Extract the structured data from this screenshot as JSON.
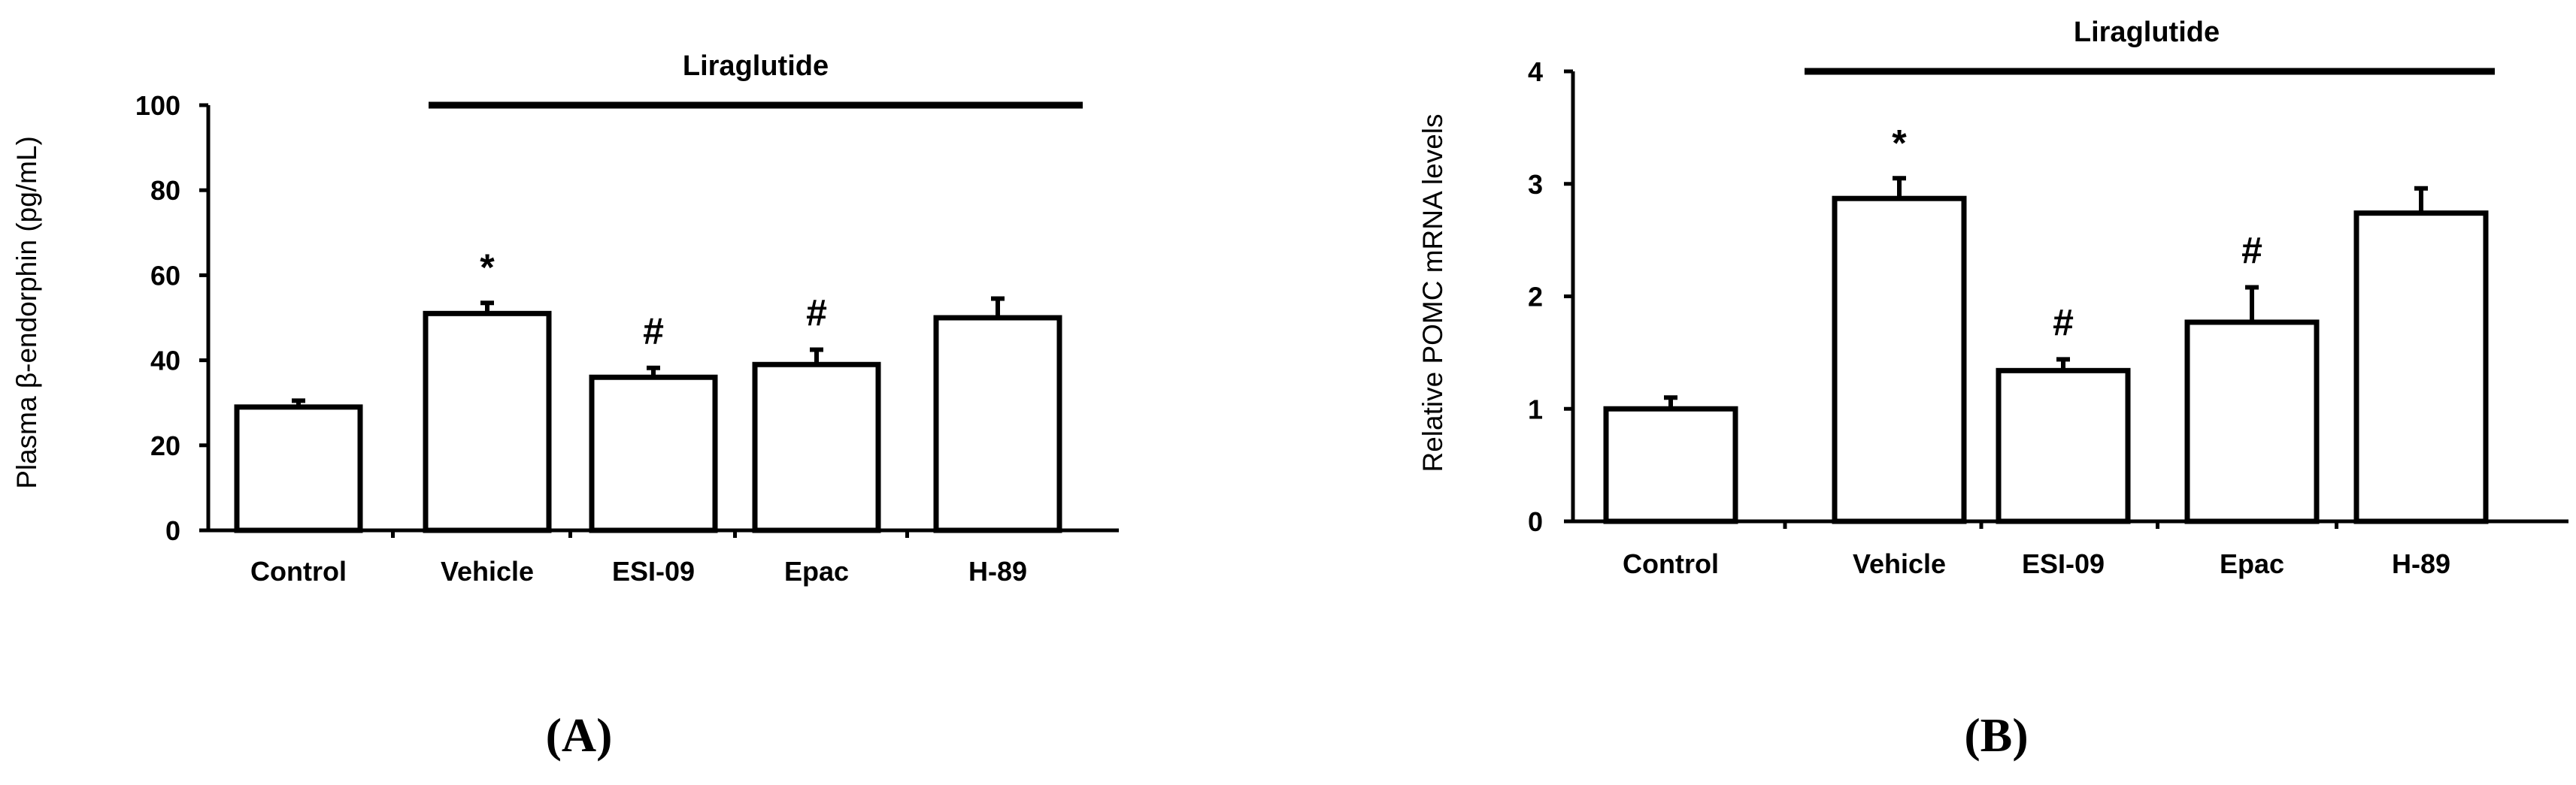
{
  "chart_data": [
    {
      "type": "bar",
      "panel_label": "(A)",
      "ylabel": "Plasma β-endorphin (pg/mL)",
      "ylim": [
        0,
        100
      ],
      "yticks": [
        "0",
        "20",
        "40",
        "60",
        "80",
        "100"
      ],
      "categories": [
        "Control",
        "Vehicle",
        "ESI-09",
        "Epac",
        "H-89"
      ],
      "values": [
        29,
        51,
        36,
        39,
        50
      ],
      "errors": [
        1.5,
        2.5,
        2.2,
        3.5,
        4.5
      ],
      "annotations": [
        "",
        "*",
        "#",
        "#",
        ""
      ],
      "group_label": "Liraglutide",
      "group_span": [
        "Vehicle",
        "H-89"
      ]
    },
    {
      "type": "bar",
      "panel_label": "(B)",
      "ylabel": "Relative POMC mRNA levels",
      "ylim": [
        0,
        4
      ],
      "yticks": [
        "0",
        "1",
        "2",
        "3",
        "4"
      ],
      "categories": [
        "Control",
        "Vehicle",
        "ESI-09",
        "Epac",
        "H-89"
      ],
      "values": [
        1.0,
        2.87,
        1.34,
        1.77,
        2.74
      ],
      "errors": [
        0.1,
        0.18,
        0.1,
        0.31,
        0.22
      ],
      "annotations": [
        "",
        "*",
        "#",
        "#",
        ""
      ],
      "group_label": "Liraglutide",
      "group_span": [
        "Vehicle",
        "H-89"
      ]
    }
  ]
}
